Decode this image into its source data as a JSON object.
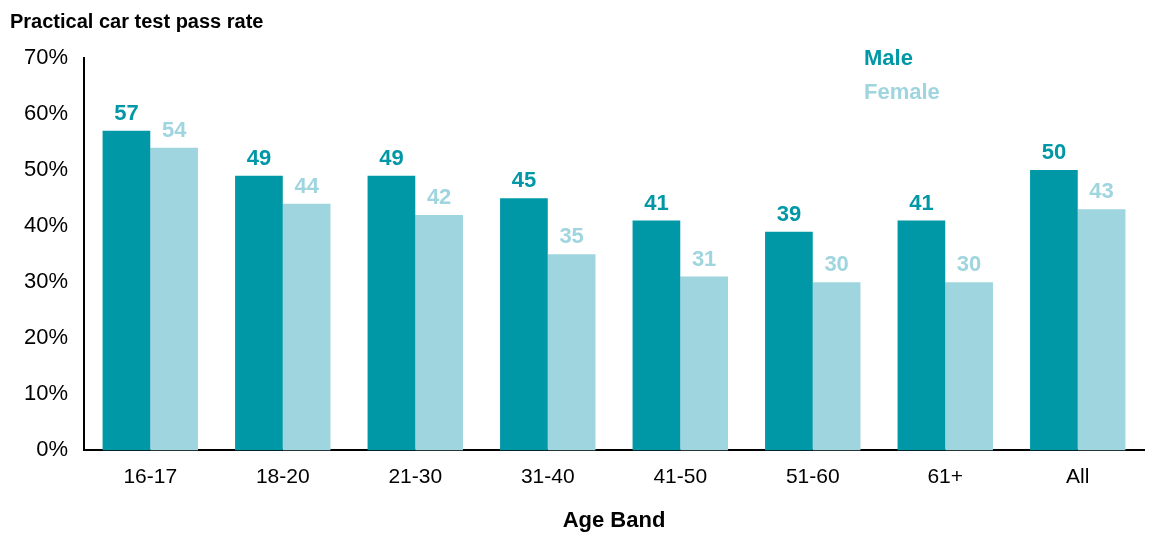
{
  "chart_data": {
    "type": "bar",
    "ylabel": "Practical car test pass rate",
    "xlabel": "Age Band",
    "categories": [
      "16-17",
      "18-20",
      "21-30",
      "31-40",
      "41-50",
      "51-60",
      "61+",
      "All"
    ],
    "series": [
      {
        "name": "Male",
        "color": "#0098a6",
        "values": [
          57,
          49,
          49,
          45,
          41,
          39,
          41,
          50
        ]
      },
      {
        "name": "Female",
        "color": "#9fd5de",
        "values": [
          54,
          44,
          42,
          35,
          31,
          30,
          30,
          43
        ]
      }
    ],
    "ylim": [
      0,
      70
    ],
    "yticks": [
      {
        "value": 0,
        "label": "0%"
      },
      {
        "value": 10,
        "label": "10%"
      },
      {
        "value": 20,
        "label": "20%"
      },
      {
        "value": 30,
        "label": "30%"
      },
      {
        "value": 40,
        "label": "40%"
      },
      {
        "value": 50,
        "label": "50%"
      },
      {
        "value": 60,
        "label": "60%"
      },
      {
        "value": 70,
        "label": "70%"
      }
    ],
    "data_labels": true,
    "legend": "top right",
    "grid": false
  }
}
